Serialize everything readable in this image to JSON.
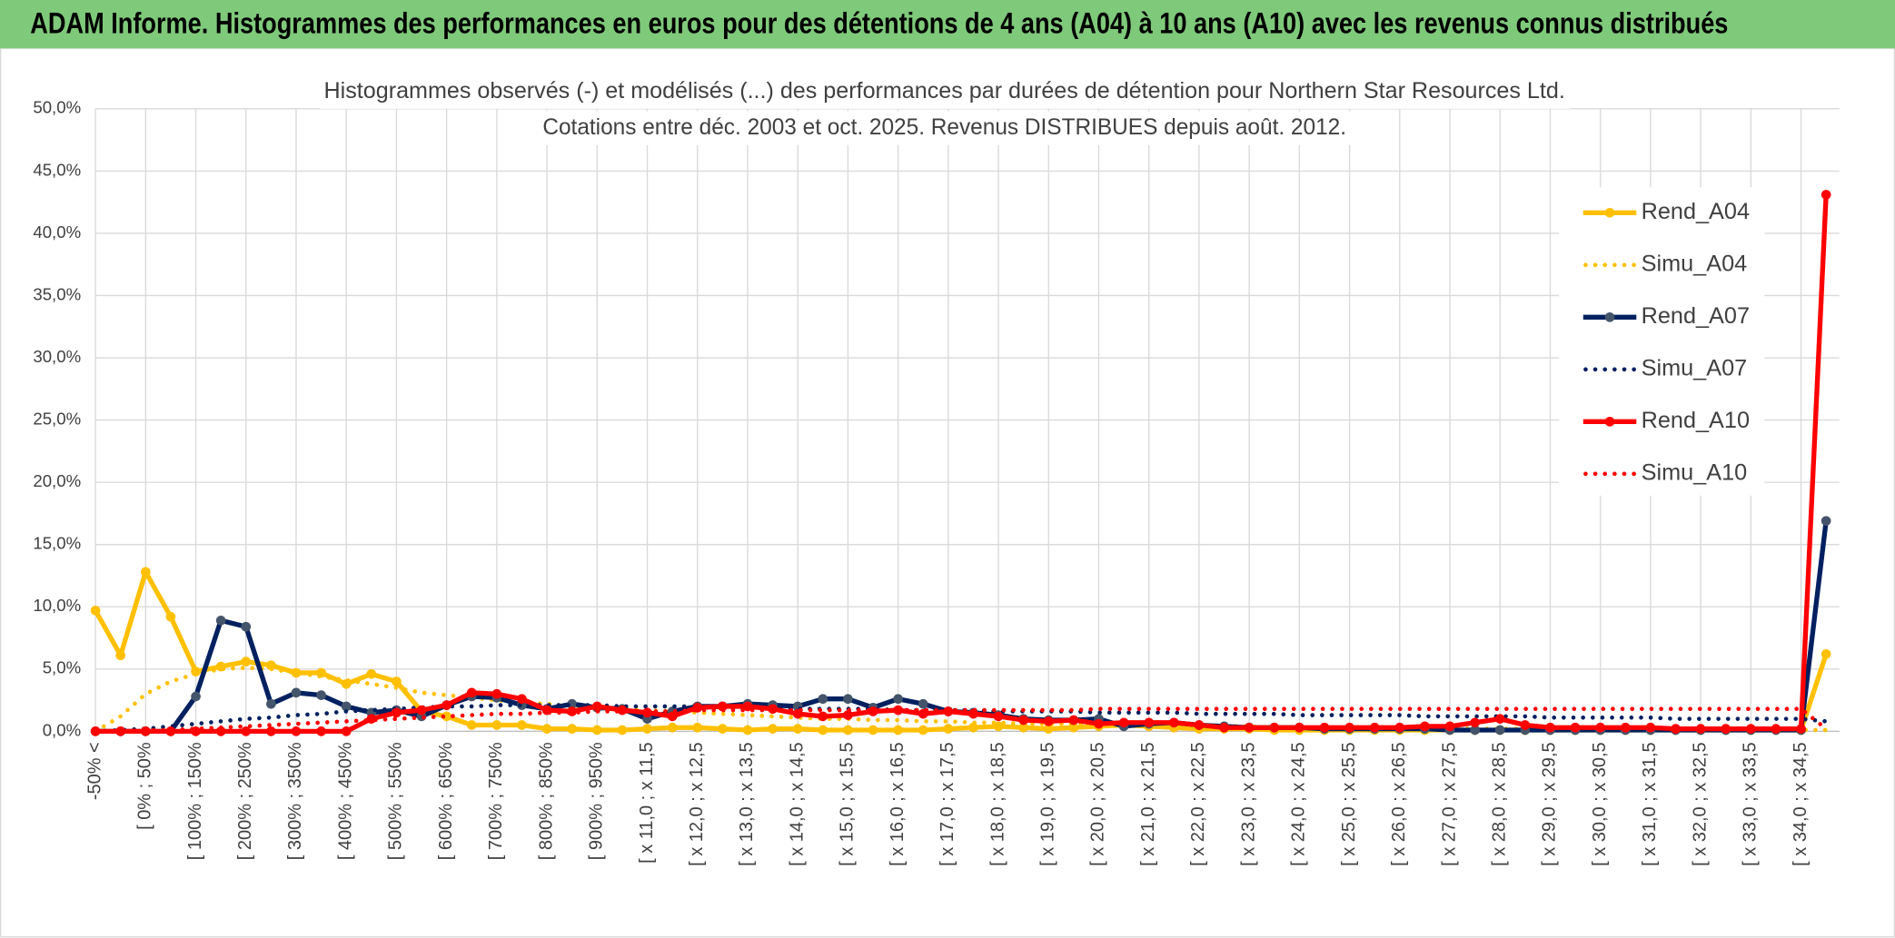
{
  "header": {
    "title": "ADAM Informe. Histogrammes des performances en euros pour des détentions de 4 ans (A04) à 10 ans (A10) avec les revenus connus distribués"
  },
  "chart_data": {
    "type": "line",
    "title": "Histogrammes observés (-) et modélisés (...) des performances par durées de détention pour Northern Star Resources Ltd.",
    "subtitle": "Cotations entre déc. 2003 et oct. 2025. Revenus DISTRIBUES depuis août. 2012.",
    "categories": [
      "-50% <",
      null,
      "[ 0% ; 50%",
      null,
      "[ 100% ; 150%",
      null,
      "[ 200% ; 250%",
      null,
      "[ 300% ; 350%",
      null,
      "[ 400% ; 450%",
      null,
      "[ 500% ; 550%",
      null,
      "[ 600% ; 650%",
      null,
      "[ 700% ; 750%",
      null,
      "[ 800% ; 850%",
      null,
      "[ 900% ; 950%",
      null,
      "[ x 11,0 ; x 11,5",
      null,
      "[ x 12,0 ; x 12,5",
      null,
      "[ x 13,0 ; x 13,5",
      null,
      "[ x 14,0 ; x 14,5",
      null,
      "[ x 15,0 ; x 15,5",
      null,
      "[ x 16,0 ; x 16,5",
      null,
      "[ x 17,0 ; x 17,5",
      null,
      "[ x 18,0 ; x 18,5",
      null,
      "[ x 19,0 ; x 19,5",
      null,
      "[ x 20,0 ; x 20,5",
      null,
      "[ x 21,0 ; x 21,5",
      null,
      "[ x 22,0 ; x 22,5",
      null,
      "[ x 23,0 ; x 23,5",
      null,
      "[ x 24,0 ; x 24,5",
      null,
      "[ x 25,0 ; x 25,5",
      null,
      "[ x 26,0 ; x 26,5",
      null,
      "[ x 27,0 ; x 27,5",
      null,
      "[ x 28,0 ; x 28,5",
      null,
      "[ x 29,0 ; x 29,5",
      null,
      "[ x 30,0 ; x 30,5",
      null,
      "[ x 31,0 ; x 31,5",
      null,
      "[ x 32,0 ; x 32,5",
      null,
      "[ x 33,0 ; x 33,5",
      null,
      "[ x 34,0 ; x 34,5",
      null
    ],
    "series": [
      {
        "name": "Rend_A04",
        "color": "#ffc000",
        "style": "solid",
        "marker": true,
        "values": [
          9.7,
          6.1,
          12.8,
          9.2,
          4.8,
          5.2,
          5.6,
          5.3,
          4.7,
          4.7,
          3.8,
          4.6,
          4.0,
          1.6,
          1.2,
          0.5,
          0.5,
          0.5,
          0.2,
          0.2,
          0.1,
          0.1,
          0.2,
          0.3,
          0.3,
          0.2,
          0.1,
          0.2,
          0.2,
          0.1,
          0.1,
          0.1,
          0.1,
          0.1,
          0.2,
          0.3,
          0.4,
          0.3,
          0.2,
          0.3,
          0.4,
          0.5,
          0.4,
          0.3,
          0.2,
          0.2,
          0.2,
          0.1,
          0.1,
          0.1,
          0.1,
          0.1,
          0.1,
          0.1,
          0.1,
          0.1,
          0.1,
          0.1,
          0.1,
          0.1,
          0.1,
          0.1,
          0.1,
          0.1,
          0.1,
          0.1,
          0.1,
          0.1,
          0.1,
          6.2
        ]
      },
      {
        "name": "Simu_A04",
        "color": "#ffc000",
        "style": "dotted",
        "marker": false,
        "values": [
          0.0,
          1.2,
          3.0,
          4.0,
          4.6,
          5.0,
          5.1,
          5.0,
          4.7,
          4.4,
          4.1,
          3.8,
          3.5,
          3.1,
          2.9,
          2.7,
          2.5,
          2.3,
          2.2,
          2.0,
          1.9,
          1.8,
          1.7,
          1.6,
          1.5,
          1.4,
          1.3,
          1.2,
          1.1,
          1.0,
          1.0,
          0.9,
          0.9,
          0.8,
          0.8,
          0.7,
          0.7,
          0.6,
          0.6,
          0.6,
          0.5,
          0.5,
          0.5,
          0.4,
          0.4,
          0.4,
          0.4,
          0.3,
          0.3,
          0.3,
          0.3,
          0.3,
          0.3,
          0.2,
          0.2,
          0.2,
          0.2,
          0.2,
          0.2,
          0.2,
          0.2,
          0.2,
          0.2,
          0.1,
          0.1,
          0.1,
          0.1,
          0.1,
          0.1,
          0.1
        ]
      },
      {
        "name": "Rend_A07",
        "color": "#002060",
        "marker_color": "#44546a",
        "style": "solid",
        "marker": true,
        "values": [
          0,
          0,
          0,
          0,
          2.8,
          8.9,
          8.4,
          2.2,
          3.1,
          2.9,
          2.0,
          1.5,
          1.7,
          1.2,
          2.1,
          2.8,
          2.7,
          2.1,
          1.8,
          2.2,
          1.9,
          1.8,
          1.0,
          1.6,
          2.0,
          2.0,
          2.2,
          2.1,
          2.0,
          2.6,
          2.6,
          1.9,
          2.6,
          2.2,
          1.6,
          1.5,
          1.3,
          1.0,
          0.9,
          0.9,
          1.0,
          0.4,
          0.6,
          0.7,
          0.5,
          0.4,
          0.3,
          0.3,
          0.3,
          0.2,
          0.2,
          0.2,
          0.2,
          0.2,
          0.1,
          0.1,
          0.1,
          0.1,
          0.1,
          0.1,
          0.1,
          0.1,
          0.1,
          0.1,
          0.1,
          0.1,
          0.1,
          0.1,
          0.1,
          16.9
        ]
      },
      {
        "name": "Simu_A07",
        "color": "#002060",
        "style": "dotted",
        "marker": false,
        "values": [
          0.0,
          0.1,
          0.2,
          0.4,
          0.6,
          0.8,
          1.0,
          1.1,
          1.3,
          1.4,
          1.6,
          1.7,
          1.8,
          1.9,
          2.0,
          2.0,
          2.1,
          2.1,
          2.1,
          2.1,
          2.1,
          2.0,
          2.0,
          2.0,
          2.0,
          1.9,
          1.9,
          1.9,
          1.8,
          1.8,
          1.8,
          1.8,
          1.7,
          1.7,
          1.7,
          1.7,
          1.6,
          1.6,
          1.6,
          1.6,
          1.5,
          1.5,
          1.5,
          1.5,
          1.4,
          1.4,
          1.4,
          1.4,
          1.3,
          1.3,
          1.3,
          1.3,
          1.3,
          1.2,
          1.2,
          1.2,
          1.2,
          1.2,
          1.1,
          1.1,
          1.1,
          1.1,
          1.1,
          1.0,
          1.0,
          1.0,
          1.0,
          1.0,
          1.0,
          0.8
        ]
      },
      {
        "name": "Rend_A10",
        "color": "#ff0000",
        "style": "solid",
        "marker": true,
        "values": [
          0,
          0,
          0,
          0,
          0,
          0,
          0,
          0,
          0,
          0,
          0,
          1.0,
          1.5,
          1.7,
          2.1,
          3.1,
          3.0,
          2.6,
          1.7,
          1.6,
          2.0,
          1.7,
          1.5,
          1.2,
          1.9,
          2.0,
          2.0,
          1.8,
          1.4,
          1.2,
          1.3,
          1.6,
          1.7,
          1.4,
          1.6,
          1.4,
          1.2,
          0.9,
          0.8,
          0.9,
          0.6,
          0.7,
          0.7,
          0.7,
          0.5,
          0.3,
          0.3,
          0.3,
          0.3,
          0.3,
          0.3,
          0.3,
          0.3,
          0.4,
          0.4,
          0.7,
          1.0,
          0.5,
          0.3,
          0.3,
          0.3,
          0.3,
          0.3,
          0.2,
          0.2,
          0.2,
          0.2,
          0.2,
          0.2,
          43.1
        ]
      },
      {
        "name": "Simu_A10",
        "color": "#ff0000",
        "style": "dotted",
        "marker": false,
        "values": [
          0.0,
          0.0,
          0.1,
          0.1,
          0.2,
          0.3,
          0.4,
          0.5,
          0.6,
          0.7,
          0.8,
          0.9,
          1.0,
          1.1,
          1.2,
          1.3,
          1.4,
          1.4,
          1.5,
          1.5,
          1.6,
          1.6,
          1.6,
          1.6,
          1.7,
          1.7,
          1.7,
          1.7,
          1.7,
          1.7,
          1.7,
          1.7,
          1.7,
          1.7,
          1.7,
          1.7,
          1.7,
          1.7,
          1.7,
          1.7,
          1.8,
          1.8,
          1.8,
          1.8,
          1.8,
          1.8,
          1.8,
          1.8,
          1.8,
          1.8,
          1.8,
          1.8,
          1.8,
          1.8,
          1.8,
          1.8,
          1.8,
          1.8,
          1.8,
          1.8,
          1.8,
          1.8,
          1.8,
          1.8,
          1.8,
          1.8,
          1.8,
          1.8,
          1.8,
          0.2
        ]
      }
    ],
    "ylim": [
      0,
      50
    ],
    "yticks": [
      {
        "value": 0,
        "label": "0,0%"
      },
      {
        "value": 5,
        "label": "5,0%"
      },
      {
        "value": 10,
        "label": "10,0%"
      },
      {
        "value": 15,
        "label": "15,0%"
      },
      {
        "value": 20,
        "label": "20,0%"
      },
      {
        "value": 25,
        "label": "25,0%"
      },
      {
        "value": 30,
        "label": "30,0%"
      },
      {
        "value": 35,
        "label": "35,0%"
      },
      {
        "value": 40,
        "label": "40,0%"
      },
      {
        "value": 45,
        "label": "45,0%"
      },
      {
        "value": 50,
        "label": "50,0%"
      }
    ],
    "grid": true,
    "legend": "right"
  }
}
